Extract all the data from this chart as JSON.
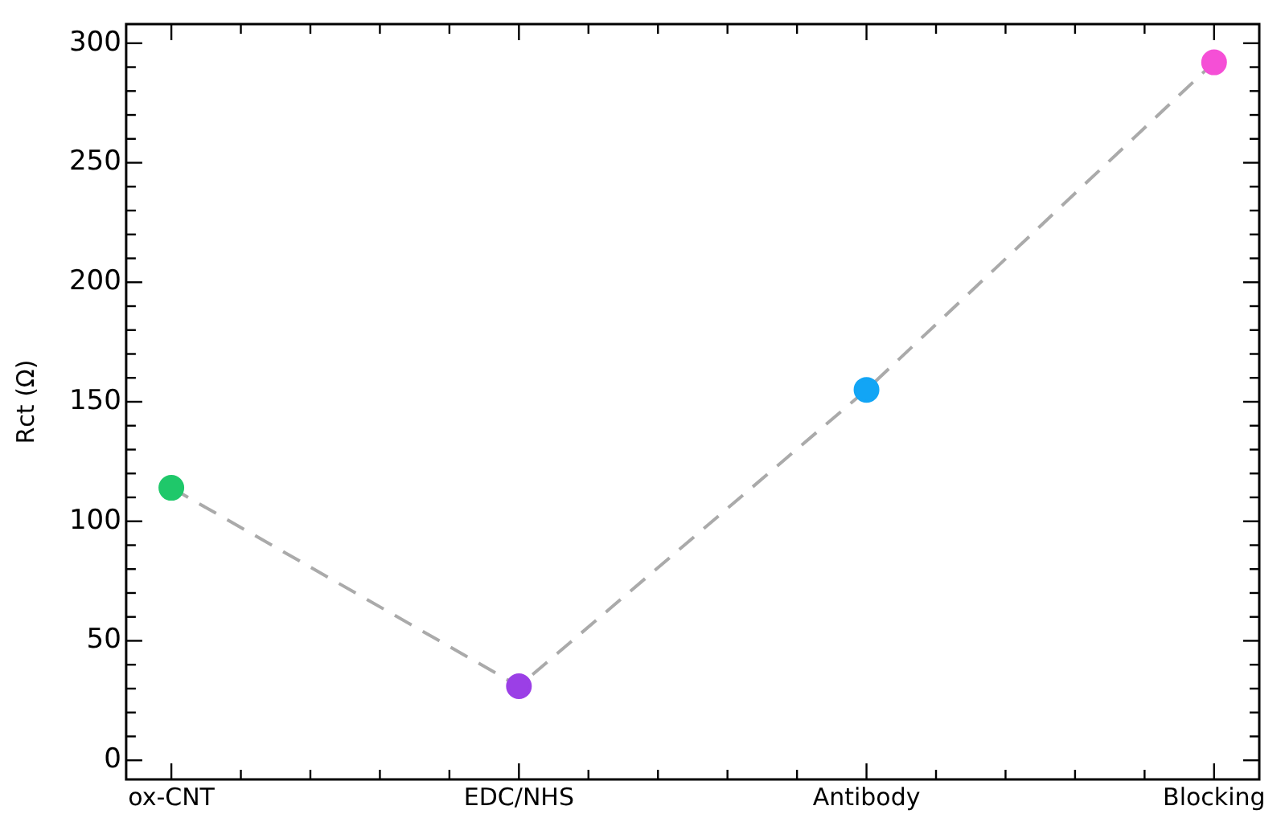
{
  "chart_data": {
    "type": "line",
    "ylabel": "Rct (Ω)",
    "categories": [
      "ox-CNT",
      "EDC/NHS",
      "Antibody",
      "Blocking"
    ],
    "ylim": [
      -8,
      308
    ],
    "yticks": [
      0,
      50,
      100,
      150,
      200,
      250,
      300
    ],
    "grid": false,
    "legend": false,
    "marker": "circle",
    "line_style": "dashed",
    "series": [
      {
        "type": "line",
        "color": "#aaaaaa",
        "colors": [
          "#1fc86a",
          "#9b3fe6",
          "#12a5f5",
          "#f54fd6"
        ],
        "values": [
          114,
          31,
          155,
          292
        ]
      }
    ]
  }
}
